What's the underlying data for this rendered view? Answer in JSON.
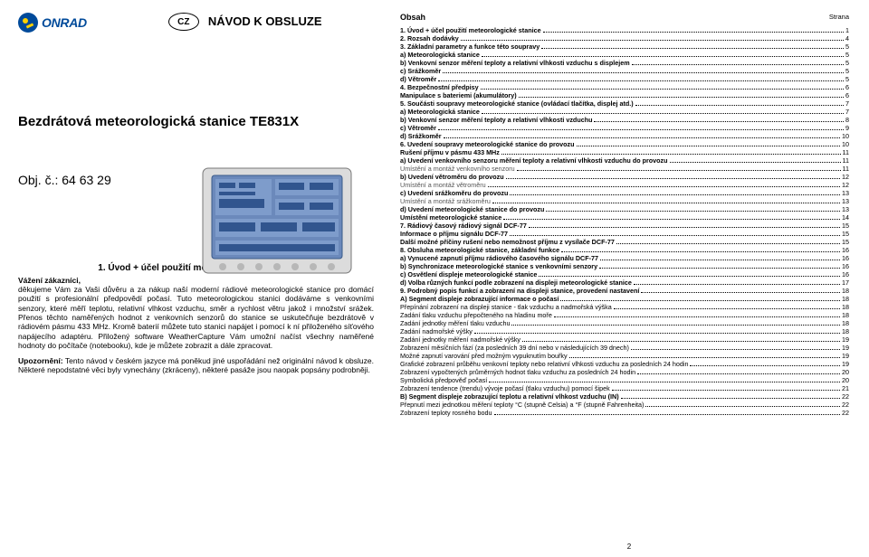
{
  "left": {
    "logo_text": "ONRAD",
    "cz": "CZ",
    "manual_title": "NÁVOD K OBSLUZE",
    "product_title": "Bezdrátová meteorologická stanice TE831X",
    "obj": "Obj. č.: 64 63 29",
    "section1": "1. Úvod +  účel použití meteorologické stanice",
    "greet": "Vážení zákazníci,",
    "para1": "děkujeme Vám za Vaši důvěru a za nákup naší moderní rádiové meteorologické stanice pro domácí použití s profesionální předpovědí počasí. Tuto meteorologickou stanici dodáváme s venkovními senzory, které měří teplotu, relativní vlhkost vzduchu, směr a rychlost větru jakož i množství srážek. Přenos těchto naměřených hodnot z venkovních senzorů do stanice se uskutečňuje bezdrátově v rádiovém pásmu 433 MHz. Kromě baterií můžete tuto stanici napájet i pomocí k ní přiloženého síťového napájecího adaptéru. Přiložený software WeatherCapture Vám umožní načíst všechny naměřené hodnoty do počítače (notebooku), kde je můžete zobrazit a dále zpracovat.",
    "upoz_label": "Upozornění:",
    "para2": " Tento návod v českém jazyce má poněkud jiné uspořádání než originální návod k obsluze. Některé nepodstatné věci byly vynechány (zkráceny), některé pasáže jsou naopak popsány podrobněji."
  },
  "right": {
    "obsah": "Obsah",
    "strana": "Strana",
    "toc": [
      {
        "bold": true,
        "label": "1. Úvod + účel použití meteorologické stanice",
        "pg": "1"
      },
      {
        "bold": true,
        "label": "2. Rozsah dodávky",
        "pg": "4"
      },
      {
        "bold": true,
        "label": "3. Základní parametry a funkce této soupravy",
        "pg": "5"
      },
      {
        "bold": true,
        "label": "a) Meteorologická stanice",
        "pg": "5"
      },
      {
        "bold": true,
        "label": "b) Venkovní senzor měření teploty a relativní vlhkosti vzduchu s displejem",
        "pg": "5"
      },
      {
        "bold": true,
        "label": "c) Srážkoměr",
        "pg": "5"
      },
      {
        "bold": true,
        "label": "d) Větroměr",
        "pg": "5"
      },
      {
        "bold": true,
        "label": "4. Bezpečnostní předpisy",
        "pg": "6"
      },
      {
        "bold": true,
        "label": "Manipulace s bateriemi (akumulátory)",
        "pg": "6"
      },
      {
        "bold": true,
        "label": "5. Součásti soupravy meteorologické stanice (ovládací tlačítka, displej atd.)",
        "pg": "7"
      },
      {
        "bold": true,
        "label": "a) Meteorologická stanice",
        "pg": "7"
      },
      {
        "bold": true,
        "label": "b) Venkovní senzor měření teploty a relativní vlhkosti vzduchu",
        "pg": "8"
      },
      {
        "bold": true,
        "label": "c) Větroměr",
        "pg": "9"
      },
      {
        "bold": true,
        "label": "d) Srážkoměr",
        "pg": "10"
      },
      {
        "bold": true,
        "label": "6. Uvedení soupravy meteorologické stanice do provozu",
        "pg": "10"
      },
      {
        "bold": true,
        "label": "Rušení příjmu v pásmu 433 MHz",
        "pg": "11"
      },
      {
        "bold": true,
        "label": "a) Uvedení venkovního senzoru měření teploty a relativní vlhkosti vzduchu do provozu",
        "pg": "11"
      },
      {
        "bold": false,
        "light": true,
        "label": "Umístění a montáž venkovního senzoru",
        "pg": "11"
      },
      {
        "bold": true,
        "label": "b) Uvedení větroměru do provozu",
        "pg": "12"
      },
      {
        "bold": false,
        "light": true,
        "label": "Umístění a montáž větroměru",
        "pg": "12"
      },
      {
        "bold": true,
        "label": "c) Uvedení srážkoměru do provozu",
        "pg": "13"
      },
      {
        "bold": false,
        "light": true,
        "label": "Umístění a montáž srážkoměru",
        "pg": "13"
      },
      {
        "bold": true,
        "label": "d) Uvedení meteorologické stanice do provozu",
        "pg": "13"
      },
      {
        "bold": true,
        "label": "Umístění meteorologické stanice",
        "pg": "14"
      },
      {
        "bold": true,
        "label": "7. Rádiový časový rádiový signál DCF-77",
        "pg": "15"
      },
      {
        "bold": true,
        "label": "Informace o příjmu signálu DCF-77",
        "pg": "15"
      },
      {
        "bold": true,
        "label": "Další možné příčiny rušení nebo nemožnost příjmu z vysílače DCF-77",
        "pg": "15"
      },
      {
        "bold": true,
        "label": "8. Obsluha meteorologické stanice, základní funkce",
        "pg": "16"
      },
      {
        "bold": true,
        "label": "a) Vynucené zapnutí příjmu rádiového časového signálu DCF-77",
        "pg": "16"
      },
      {
        "bold": true,
        "label": "b) Synchronizace meteorologické stanice s venkovními senzory",
        "pg": "16"
      },
      {
        "bold": true,
        "label": "c) Osvětlení displeje meteorologické stanice",
        "pg": "16"
      },
      {
        "bold": true,
        "label": "d) Volba různých funkcí podle zobrazení na displeji meteorologické stanice",
        "pg": "17"
      },
      {
        "bold": true,
        "label": "9. Podrobný popis funkcí a zobrazení na displeji stanice, provedení nastavení",
        "pg": "18"
      },
      {
        "bold": true,
        "label": "A) Segment displeje zobrazující informace o počasí",
        "pg": "18"
      },
      {
        "bold": false,
        "label": "Přepínání zobrazení na displeji stanice - tlak vzduchu a nadmořská výška",
        "pg": "18"
      },
      {
        "bold": false,
        "label": "Zadání tlaku vzduchu přepočteného na hladinu moře",
        "pg": "18"
      },
      {
        "bold": false,
        "label": "Zadání jednotky měření tlaku vzduchu",
        "pg": "18"
      },
      {
        "bold": false,
        "label": "Zadání nadmořské výšky",
        "pg": "18"
      },
      {
        "bold": false,
        "label": "Zadání jednotky měření nadmořské výšky",
        "pg": "19"
      },
      {
        "bold": false,
        "label": "Zobrazení měsíčních fází (za posledních 39 dní nebo v následujících 39 dnech)",
        "pg": "19"
      },
      {
        "bold": false,
        "label": "Možné zapnutí varování před možným vypuknutím bouřky",
        "pg": "19"
      },
      {
        "bold": false,
        "label": "Grafické zobrazení průběhu venkovní teploty nebo relativní vlhkosti vzduchu za posledních 24 hodin",
        "pg": "19"
      },
      {
        "bold": false,
        "label": "Zobrazení vypočtených průměrných hodnot tlaku vzduchu za posledních 24 hodin",
        "pg": "20"
      },
      {
        "bold": false,
        "label": "Symbolická předpověď počasí",
        "pg": "20"
      },
      {
        "bold": false,
        "label": "Zobrazení tendence (trendu) vývoje počasí (tlaku vzduchu) pomocí šipek",
        "pg": "21"
      },
      {
        "bold": true,
        "label": "B) Segment displeje zobrazující teplotu a relativní vlhkost vzduchu (IN)",
        "pg": "22"
      },
      {
        "bold": false,
        "label": "Přepnutí mezi jednotkou měření teploty °C (stupně Celsia) a °F (stupně Fahrenheita)",
        "pg": "22"
      },
      {
        "bold": false,
        "label": "Zobrazení teploty rosného bodu",
        "pg": "22"
      }
    ],
    "pagenum": "2"
  }
}
